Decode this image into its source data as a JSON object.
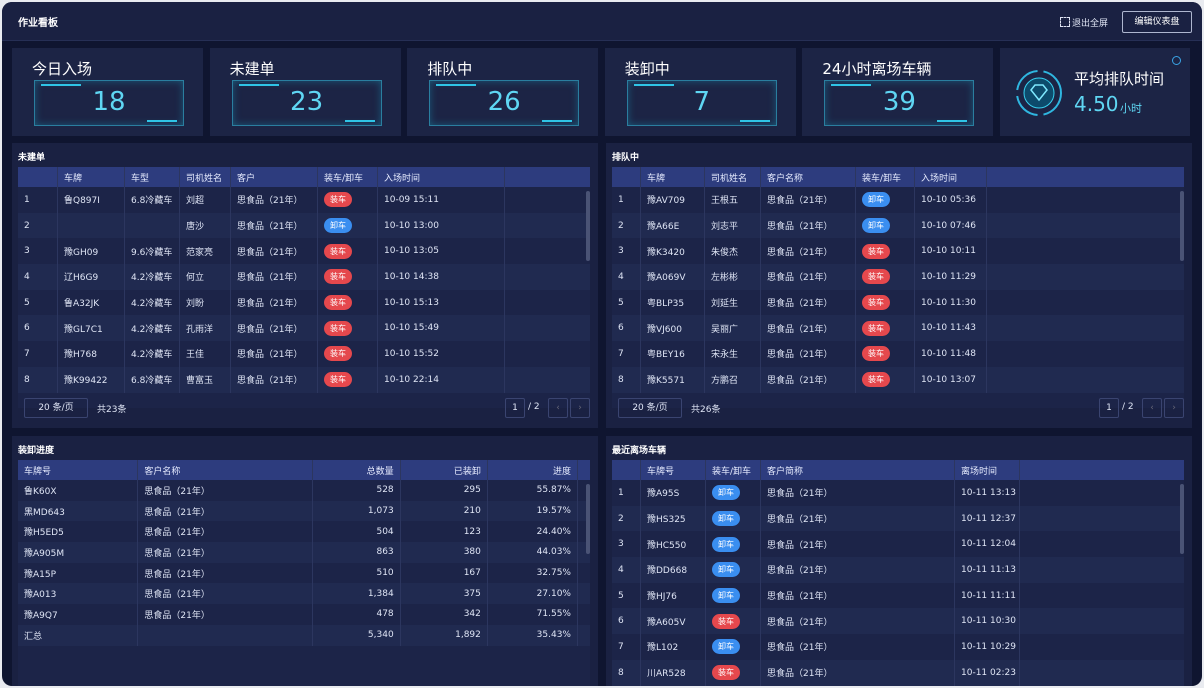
{
  "header": {
    "title": "作业看板",
    "exit_fullscreen": "退出全屏",
    "edit_button": "编辑仪表盘"
  },
  "kpis": [
    {
      "label": "今日入场",
      "value": "18"
    },
    {
      "label": "未建单",
      "value": "23"
    },
    {
      "label": "排队中",
      "value": "26"
    },
    {
      "label": "装卸中",
      "value": "7"
    },
    {
      "label": "24小时离场车辆",
      "value": "39"
    }
  ],
  "avg_queue": {
    "label": "平均排队时间",
    "value": "4.50",
    "unit": "小时"
  },
  "unbuilt": {
    "title": "未建单",
    "columns": [
      "车牌",
      "车型",
      "司机姓名",
      "客户",
      "装车/卸车",
      "入场时间"
    ],
    "rows": [
      [
        "1",
        "鲁Q897I",
        "6.8冷藏车",
        "刘超",
        "思食品（21年）",
        {
          "text": "装车",
          "color": "#e5484d"
        },
        "10-09 15:11"
      ],
      [
        "2",
        null,
        null,
        "唐沙",
        "思食品（21年）",
        {
          "text": "卸车",
          "color": "#3a8ef0"
        },
        "10-10 13:00"
      ],
      [
        "3",
        "豫GH09",
        "9.6冷藏车",
        "范家亮",
        "思食品（21年）",
        {
          "text": "装车",
          "color": "#e5484d"
        },
        "10-10 13:05"
      ],
      [
        "4",
        "辽H6G9",
        "4.2冷藏车",
        "何立",
        "思食品（21年）",
        {
          "text": "装车",
          "color": "#e5484d"
        },
        "10-10 14:38"
      ],
      [
        "5",
        "鲁A32JK",
        "4.2冷藏车",
        "刘盼",
        "思食品（21年）",
        {
          "text": "装车",
          "color": "#e5484d"
        },
        "10-10 15:13"
      ],
      [
        "6",
        "豫GL7C1",
        "4.2冷藏车",
        "孔雨洋",
        "思食品（21年）",
        {
          "text": "装车",
          "color": "#e5484d"
        },
        "10-10 15:49"
      ],
      [
        "7",
        "豫H768",
        "4.2冷藏车",
        "王佳",
        "思食品（21年）",
        {
          "text": "装车",
          "color": "#e5484d"
        },
        "10-10 15:52"
      ],
      [
        "8",
        "豫K99422",
        "6.8冷藏车",
        "曹富玉",
        "思食品（21年）",
        {
          "text": "装车",
          "color": "#e5484d"
        },
        "10-10 22:14"
      ]
    ],
    "pagination": {
      "page_size": "20 条/页",
      "total": "共23条",
      "page": "1",
      "pages": "/ 2"
    }
  },
  "queue": {
    "title": "排队中",
    "columns": [
      "车牌",
      "司机姓名",
      "客户名称",
      "装车/卸车",
      "入场时间"
    ],
    "rows": [
      [
        "1",
        "豫AV709",
        "王根五",
        "思食品（21年）",
        {
          "text": "卸车",
          "color": "#3a8ef0"
        },
        "10-10 05:36"
      ],
      [
        "2",
        "豫A66E",
        "刘志平",
        "思食品（21年）",
        {
          "text": "卸车",
          "color": "#3a8ef0"
        },
        "10-10 07:46"
      ],
      [
        "3",
        "豫K3420",
        "朱俊杰",
        "思食品（21年）",
        {
          "text": "装车",
          "color": "#e5484d"
        },
        "10-10 10:11"
      ],
      [
        "4",
        "豫A069V",
        "左彬彬",
        "思食品（21年）",
        {
          "text": "装车",
          "color": "#e5484d"
        },
        "10-10 11:29"
      ],
      [
        "5",
        "粤BLP35",
        "刘延生",
        "思食品（21年）",
        {
          "text": "装车",
          "color": "#e5484d"
        },
        "10-10 11:30"
      ],
      [
        "6",
        "豫VJ600",
        "吴丽广",
        "思食品（21年）",
        {
          "text": "装车",
          "color": "#e5484d"
        },
        "10-10 11:43"
      ],
      [
        "7",
        "粤BEY16",
        "宋永生",
        "思食品（21年）",
        {
          "text": "装车",
          "color": "#e5484d"
        },
        "10-10 11:48"
      ],
      [
        "8",
        "豫K5571",
        "方鹏召",
        "思食品（21年）",
        {
          "text": "装车",
          "color": "#e5484d"
        },
        "10-10 13:07"
      ]
    ],
    "pagination": {
      "page_size": "20 条/页",
      "total": "共26条",
      "page": "1",
      "pages": "/ 2"
    }
  },
  "progress": {
    "title": "装卸进度",
    "columns": [
      "车牌号",
      "客户名称",
      "总数量",
      "已装卸",
      "进度"
    ],
    "rows": [
      [
        "鲁K60X",
        "思食品（21年）",
        "528",
        "295",
        "55.87%"
      ],
      [
        "黑MD643",
        "思食品（21年）",
        "1,073",
        "210",
        "19.57%"
      ],
      [
        "豫H5ED5",
        "思食品（21年）",
        "504",
        "123",
        "24.40%"
      ],
      [
        "豫A905M",
        "思食品（21年）",
        "863",
        "380",
        "44.03%"
      ],
      [
        "豫A15P",
        "思食品（21年）",
        "510",
        "167",
        "32.75%"
      ],
      [
        "豫A013",
        "思食品（21年）",
        "1,384",
        "375",
        "27.10%"
      ],
      [
        "豫A9Q7",
        "思食品（21年）",
        "478",
        "342",
        "71.55%"
      ],
      [
        "汇总",
        null,
        "5,340",
        "1,892",
        "35.43%"
      ]
    ]
  },
  "departed": {
    "title": "最近离场车辆",
    "columns": [
      "车牌号",
      "装车/卸车",
      "客户简称",
      "离场时间"
    ],
    "rows": [
      [
        "1",
        "豫A95S",
        {
          "text": "卸车",
          "color": "#3a8ef0"
        },
        "思食品（21年）",
        "10-11 13:13"
      ],
      [
        "2",
        "豫HS325",
        {
          "text": "卸车",
          "color": "#3a8ef0"
        },
        "思食品（21年）",
        "10-11 12:37"
      ],
      [
        "3",
        "豫HC550",
        {
          "text": "卸车",
          "color": "#3a8ef0"
        },
        "思食品（21年）",
        "10-11 12:04"
      ],
      [
        "4",
        "豫DD668",
        {
          "text": "卸车",
          "color": "#3a8ef0"
        },
        "思食品（21年）",
        "10-11 11:13"
      ],
      [
        "5",
        "豫HJ76",
        {
          "text": "卸车",
          "color": "#3a8ef0"
        },
        "思食品（21年）",
        "10-11 11:11"
      ],
      [
        "6",
        "豫A605V",
        {
          "text": "装车",
          "color": "#e5484d"
        },
        "思食品（21年）",
        "10-11 10:30"
      ],
      [
        "7",
        "豫L102",
        {
          "text": "卸车",
          "color": "#3a8ef0"
        },
        "思食品（21年）",
        "10-11 10:29"
      ],
      [
        "8",
        "川AR528",
        {
          "text": "装车",
          "color": "#e5484d"
        },
        "思食品（21年）",
        "10-11 02:23"
      ]
    ]
  }
}
